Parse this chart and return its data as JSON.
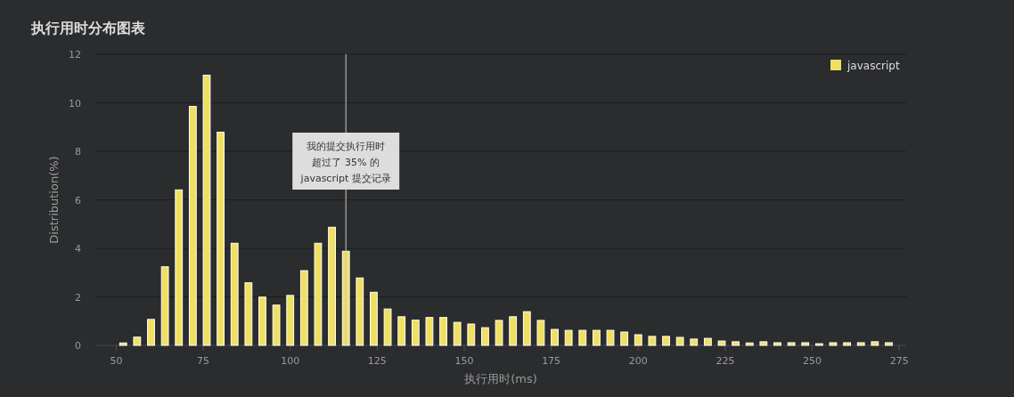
{
  "chart_data": {
    "type": "bar",
    "title": "执行用时分布图表",
    "xlabel": "执行用时(ms)",
    "ylabel": "Distribution(%)",
    "x": [
      52,
      56,
      60,
      64,
      68,
      72,
      76,
      80,
      84,
      88,
      92,
      96,
      100,
      104,
      108,
      112,
      116,
      120,
      124,
      128,
      132,
      136,
      140,
      144,
      148,
      152,
      156,
      160,
      164,
      168,
      172,
      176,
      180,
      184,
      188,
      192,
      196,
      200,
      204,
      208,
      212,
      216,
      220,
      224,
      228,
      232,
      236,
      240,
      244,
      248,
      252,
      256,
      260,
      264,
      268,
      272
    ],
    "series": [
      {
        "name": "javascript",
        "color": "#f0e060",
        "values": [
          0.1,
          0.34,
          1.07,
          3.24,
          6.41,
          9.85,
          11.14,
          8.79,
          4.21,
          2.58,
          1.99,
          1.66,
          2.06,
          3.08,
          4.21,
          4.87,
          3.88,
          2.78,
          2.19,
          1.5,
          1.18,
          1.04,
          1.15,
          1.15,
          0.95,
          0.88,
          0.73,
          1.03,
          1.18,
          1.39,
          1.03,
          0.66,
          0.62,
          0.62,
          0.62,
          0.62,
          0.55,
          0.44,
          0.37,
          0.37,
          0.33,
          0.26,
          0.29,
          0.18,
          0.15,
          0.1,
          0.15,
          0.11,
          0.11,
          0.11,
          0.07,
          0.11,
          0.11,
          0.11,
          0.15,
          0.11
        ]
      }
    ],
    "xlim": [
      44,
      277
    ],
    "ylim": [
      0,
      12
    ],
    "xticks": [
      50,
      75,
      100,
      125,
      150,
      175,
      200,
      225,
      250,
      275
    ],
    "yticks": [
      0,
      2,
      4,
      6,
      8,
      10,
      12
    ],
    "ref_lines": [
      {
        "axis": "x",
        "value": 116,
        "color": "#cccccc"
      }
    ],
    "annotations": [
      "我的提交执行用时",
      "超过了 35% 的",
      "javascript 提交记录"
    ],
    "grid": "y",
    "legend": "top right"
  }
}
